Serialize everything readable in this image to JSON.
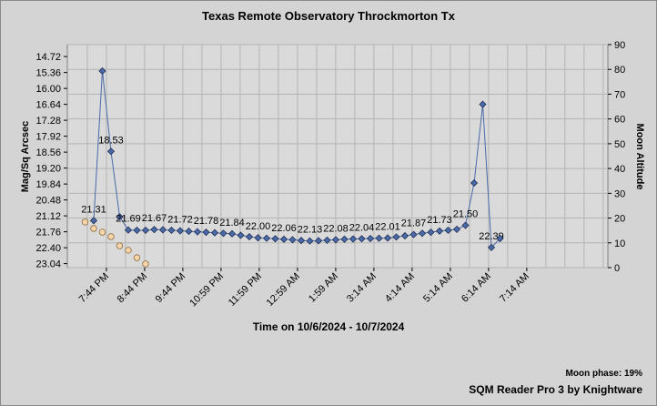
{
  "chart_data": {
    "type": "line",
    "title": "Texas Remote Observatory   Throckmorton Tx",
    "xlabel": "Time on 10/6/2024 - 10/7/2024",
    "ylabel": "Mag/Sq Arcsec",
    "y2label": "Moon Altitude",
    "annotations": [
      "Moon phase: 19%",
      "SQM Reader Pro 3 by Knightware"
    ],
    "xlim": [
      -3.05,
      59.47
    ],
    "xticks": [
      {
        "value": 1.47,
        "label": "7:44 PM"
      },
      {
        "value": 5.89,
        "label": "8:44 PM"
      },
      {
        "value": 10.31,
        "label": "9:44 PM"
      },
      {
        "value": 14.73,
        "label": "10:59 PM"
      },
      {
        "value": 19.15,
        "label": "11:59 PM"
      },
      {
        "value": 23.57,
        "label": "12:59 AM"
      },
      {
        "value": 27.99,
        "label": "1:59 AM"
      },
      {
        "value": 32.41,
        "label": "3:14 AM"
      },
      {
        "value": 36.83,
        "label": "4:14 AM"
      },
      {
        "value": 41.25,
        "label": "5:14 AM"
      },
      {
        "value": 45.67,
        "label": "6:14 AM"
      },
      {
        "value": 50.09,
        "label": "7:14 AM"
      }
    ],
    "xgrid": [
      -0.74,
      1.47,
      3.68,
      5.89,
      8.1,
      10.31,
      12.52,
      14.73,
      16.94,
      19.15,
      21.36,
      23.57,
      25.78,
      27.99,
      30.2,
      32.41,
      34.62,
      36.83,
      39.04,
      41.25,
      43.46,
      45.67,
      47.88,
      50.09,
      52.3,
      54.51,
      56.72,
      58.93
    ],
    "ylim": [
      14.24,
      23.2
    ],
    "y_inverted": true,
    "yticks": [
      14.72,
      15.36,
      {
        "value": 16,
        "label": "16.00"
      },
      16.64,
      17.28,
      17.92,
      18.56,
      {
        "value": 19.2,
        "label": "19.20"
      },
      19.84,
      20.48,
      21.12,
      21.76,
      {
        "value": 22.4,
        "label": "22.40"
      },
      23.04
    ],
    "y2lim": [
      0,
      90
    ],
    "y2ticks": [
      0,
      10,
      20,
      30,
      40,
      50,
      60,
      70,
      80,
      90
    ],
    "grid": true,
    "series": [
      {
        "color": "#4a6aa8",
        "x": [
          0,
          1,
          2,
          3,
          4,
          5,
          6,
          7,
          8,
          9,
          10,
          11,
          12,
          13,
          14,
          15,
          16,
          17,
          18,
          19,
          20,
          21,
          22,
          23,
          24,
          25,
          26,
          27,
          28,
          29,
          30,
          31,
          32,
          33,
          34,
          35,
          36,
          37,
          38,
          39,
          40,
          41,
          42,
          43,
          44,
          45,
          46,
          47
        ],
        "values": [
          21.31,
          15.3,
          18.53,
          21.16,
          21.69,
          21.7,
          21.7,
          21.67,
          21.68,
          21.7,
          21.72,
          21.74,
          21.76,
          21.78,
          21.8,
          21.82,
          21.84,
          21.9,
          21.96,
          22.0,
          22.02,
          22.04,
          22.06,
          22.08,
          22.11,
          22.13,
          22.12,
          22.1,
          22.08,
          22.06,
          22.05,
          22.04,
          22.03,
          22.02,
          22.01,
          21.97,
          21.92,
          21.87,
          21.82,
          21.78,
          21.73,
          21.7,
          21.66,
          21.5,
          19.8,
          16.64,
          22.39,
          22.03
        ],
        "value_labels": [
          "21.31",
          null,
          "18.53",
          null,
          "21.69",
          null,
          null,
          "21.67",
          null,
          null,
          "21.72",
          null,
          null,
          "21.78",
          null,
          null,
          "21.84",
          null,
          null,
          "22.00",
          null,
          null,
          "22.06",
          null,
          null,
          "22.13",
          null,
          null,
          "22.08",
          null,
          null,
          "22.04",
          null,
          null,
          "22.01",
          null,
          null,
          "21.87",
          null,
          null,
          "21.73",
          null,
          null,
          "21.50",
          null,
          null,
          "22.39",
          null
        ]
      },
      {
        "color": "#f6d6aa",
        "axis": "y2",
        "x": [
          -1,
          0,
          1,
          2,
          3,
          4,
          5,
          6
        ],
        "values": [
          18.4,
          15.8,
          14.3,
          12.5,
          8.8,
          7.0,
          4.0,
          1.5
        ]
      }
    ]
  }
}
